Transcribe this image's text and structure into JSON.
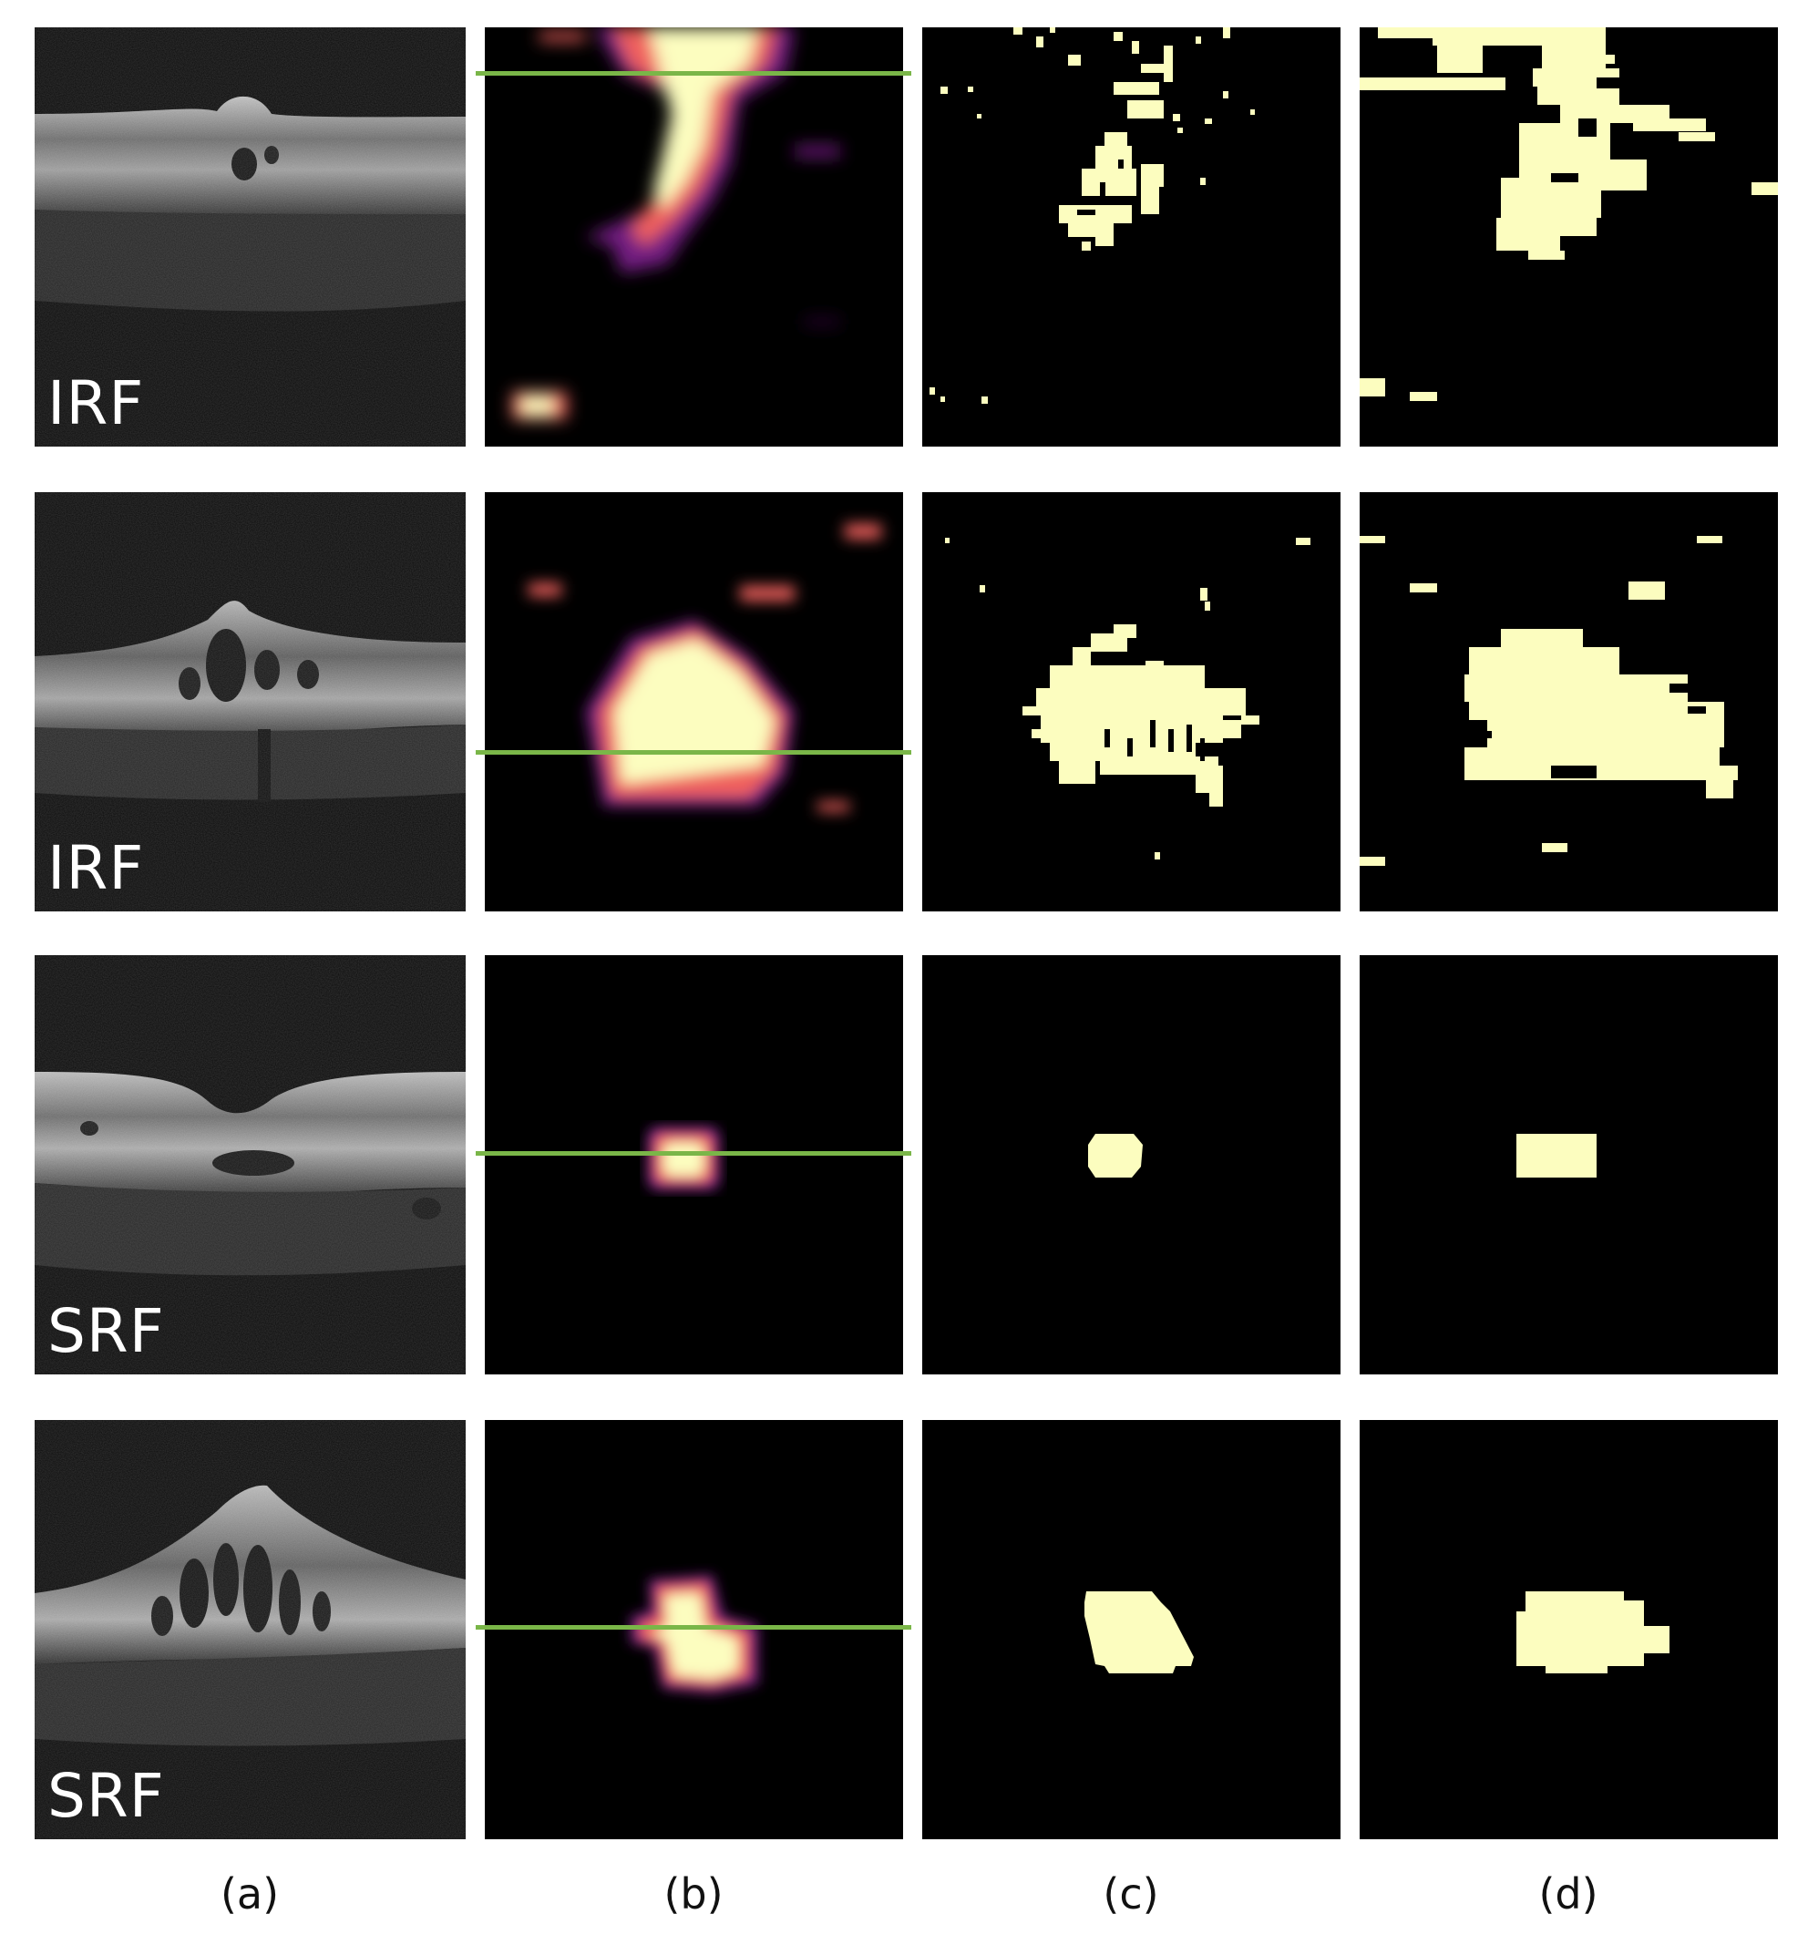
{
  "figure": {
    "column_labels": [
      "(a)",
      "(b)",
      "(c)",
      "(d)"
    ],
    "colors": {
      "heat_hot": "#fcfdbf",
      "heat_mid": "#f0605d",
      "heat_low": "#721f81",
      "mask_fill": "#fcfdbf",
      "slice_line": "#7ab648"
    },
    "rows": [
      {
        "label": "IRF",
        "oct_shape": "shallow-bump"
      },
      {
        "label": "IRF",
        "oct_shape": "cystic-peak"
      },
      {
        "label": "SRF",
        "oct_shape": "foveal-dip"
      },
      {
        "label": "SRF",
        "oct_shape": "tall-peak"
      }
    ]
  }
}
